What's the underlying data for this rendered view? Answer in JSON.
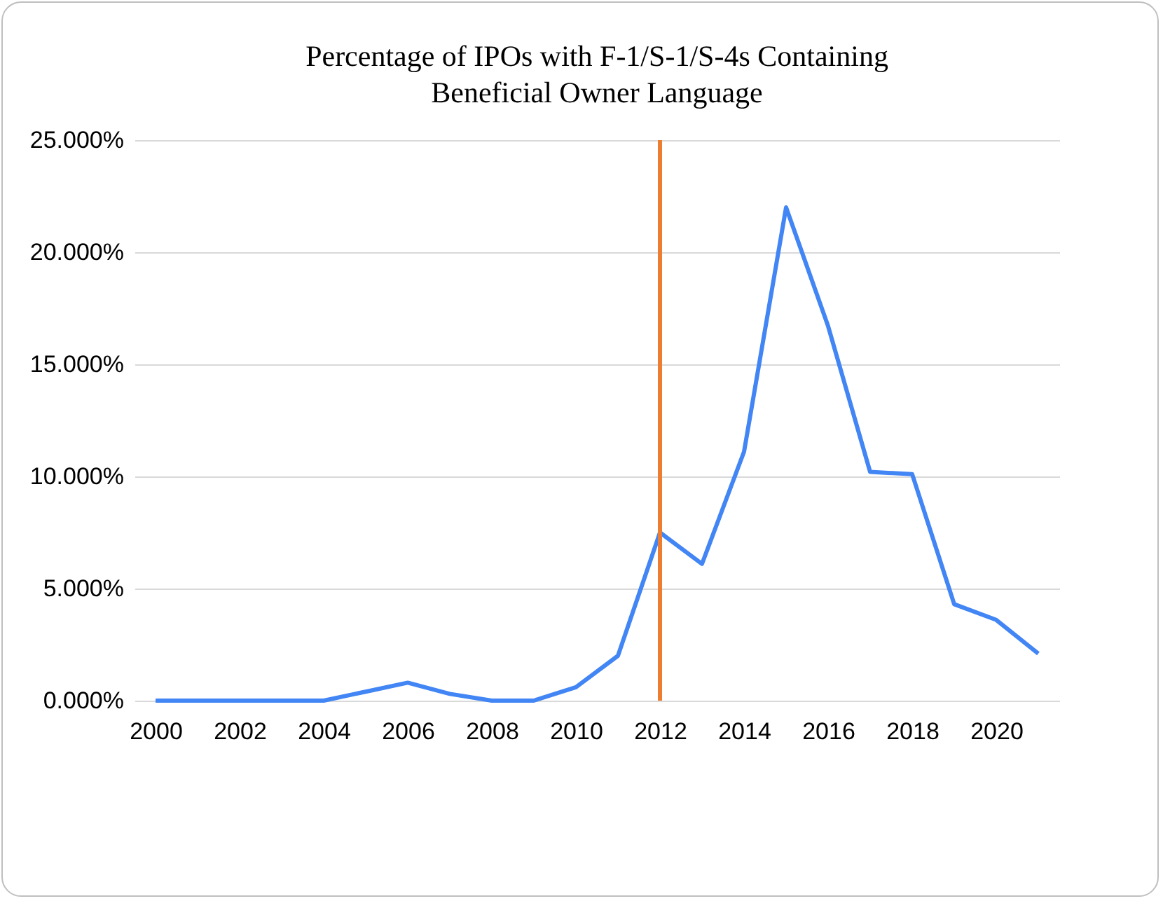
{
  "chart_data": {
    "type": "line",
    "title": "Percentage of IPOs with F-1/S-1/S-4s Containing\nBeneficial Owner Language",
    "x": [
      2000,
      2001,
      2002,
      2003,
      2004,
      2005,
      2006,
      2007,
      2008,
      2009,
      2010,
      2011,
      2012,
      2013,
      2014,
      2015,
      2016,
      2017,
      2018,
      2019,
      2020,
      2021
    ],
    "series": [
      {
        "color": "#4285f4",
        "values": [
          0,
          0,
          0,
          0,
          0,
          0.4,
          0.8,
          0.3,
          0,
          0,
          0.6,
          2.0,
          7.5,
          6.1,
          11.1,
          22.0,
          16.7,
          10.2,
          10.1,
          4.3,
          3.6,
          2.1
        ]
      }
    ],
    "xlim": [
      1999.5,
      2021.5
    ],
    "xticks": [
      2000,
      2002,
      2004,
      2006,
      2008,
      2010,
      2012,
      2014,
      2016,
      2018,
      2020
    ],
    "ylim": [
      0,
      25
    ],
    "yticks": [
      {
        "value": 0,
        "label": "0.000%"
      },
      {
        "value": 5,
        "label": "5.000%"
      },
      {
        "value": 10,
        "label": "10.000%"
      },
      {
        "value": 15,
        "label": "15.000%"
      },
      {
        "value": 20,
        "label": "20.000%"
      },
      {
        "value": 25,
        "label": "25.000%"
      }
    ],
    "ref_lines": [
      {
        "axis": "x",
        "value": 2012,
        "color": "#ed7d31"
      }
    ],
    "grid": "y",
    "legend": false,
    "marker": "none",
    "line_style": "solid"
  }
}
